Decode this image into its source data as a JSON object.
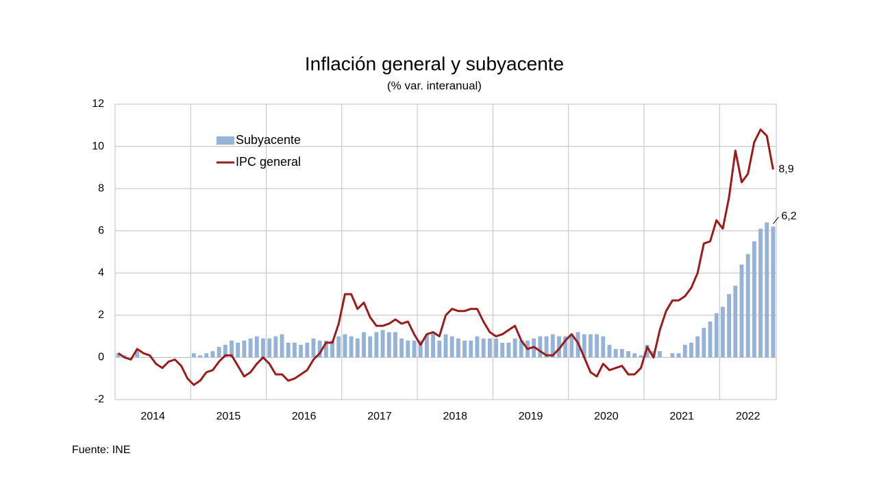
{
  "chart_data": {
    "type": "bar-line",
    "title": "Inflación general y subyacente",
    "subtitle": "(% var. interanual)",
    "source": "Fuente: INE",
    "year_labels": [
      "2014",
      "2015",
      "2016",
      "2017",
      "2018",
      "2019",
      "2020",
      "2021",
      "2022"
    ],
    "months_per_year": 12,
    "ylim": [
      -2,
      12
    ],
    "yticks": [
      -2,
      0,
      2,
      4,
      6,
      8,
      10,
      12
    ],
    "grid": true,
    "legend": "upper-left",
    "series": [
      {
        "name": "Subyacente",
        "type": "bar",
        "color": "#95b3d7",
        "values": [
          0.2,
          0.1,
          0.0,
          0.3,
          0.0,
          0.0,
          0.0,
          0.0,
          0.0,
          0.0,
          0.0,
          0.0,
          0.2,
          0.1,
          0.2,
          0.3,
          0.5,
          0.6,
          0.8,
          0.7,
          0.8,
          0.9,
          1.0,
          0.9,
          0.9,
          1.0,
          1.1,
          0.7,
          0.7,
          0.6,
          0.7,
          0.9,
          0.8,
          0.8,
          0.8,
          1.0,
          1.1,
          1.0,
          0.9,
          1.2,
          1.0,
          1.2,
          1.3,
          1.2,
          1.2,
          0.9,
          0.8,
          0.8,
          0.8,
          1.1,
          1.2,
          0.8,
          1.1,
          1.0,
          0.9,
          0.8,
          0.8,
          1.0,
          0.9,
          0.9,
          0.9,
          0.7,
          0.7,
          0.9,
          0.8,
          0.8,
          0.9,
          1.0,
          1.0,
          1.1,
          1.0,
          1.0,
          1.1,
          1.2,
          1.1,
          1.1,
          1.1,
          1.0,
          0.6,
          0.4,
          0.4,
          0.3,
          0.2,
          0.1,
          0.6,
          0.3,
          0.3,
          0.0,
          0.2,
          0.2,
          0.6,
          0.7,
          1.0,
          1.4,
          1.7,
          2.1,
          2.4,
          3.0,
          3.4,
          4.4,
          4.9,
          5.5,
          6.1,
          6.4,
          6.2
        ],
        "end_label": {
          "value": 6.2,
          "label": "6,2"
        }
      },
      {
        "name": "IPC general",
        "type": "line",
        "color": "#9b1b1b",
        "values": [
          0.2,
          0.0,
          -0.1,
          0.4,
          0.2,
          0.1,
          -0.3,
          -0.5,
          -0.2,
          -0.1,
          -0.4,
          -1.0,
          -1.3,
          -1.1,
          -0.7,
          -0.6,
          -0.2,
          0.1,
          0.1,
          -0.4,
          -0.9,
          -0.7,
          -0.3,
          0.0,
          -0.3,
          -0.8,
          -0.8,
          -1.1,
          -1.0,
          -0.8,
          -0.6,
          -0.1,
          0.2,
          0.7,
          0.7,
          1.6,
          3.0,
          3.0,
          2.3,
          2.6,
          1.9,
          1.5,
          1.5,
          1.6,
          1.8,
          1.6,
          1.7,
          1.1,
          0.6,
          1.1,
          1.2,
          1.0,
          2.0,
          2.3,
          2.2,
          2.2,
          2.3,
          2.3,
          1.7,
          1.2,
          1.0,
          1.1,
          1.3,
          1.5,
          0.8,
          0.4,
          0.5,
          0.3,
          0.1,
          0.1,
          0.4,
          0.8,
          1.1,
          0.7,
          0.0,
          -0.7,
          -0.9,
          -0.3,
          -0.6,
          -0.5,
          -0.4,
          -0.8,
          -0.8,
          -0.5,
          0.5,
          0.0,
          1.3,
          2.2,
          2.7,
          2.7,
          2.9,
          3.3,
          4.0,
          5.4,
          5.5,
          6.5,
          6.1,
          7.6,
          9.8,
          8.3,
          8.7,
          10.2,
          10.8,
          10.5,
          8.9
        ],
        "end_label": {
          "value": 8.9,
          "label": "8,9"
        }
      }
    ]
  }
}
